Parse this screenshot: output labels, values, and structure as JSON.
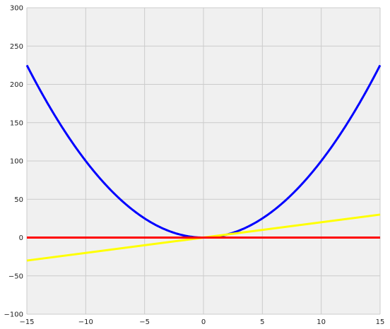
{
  "chart_data": {
    "type": "line",
    "title": "",
    "xlabel": "",
    "ylabel": "",
    "xlim": [
      -15,
      15
    ],
    "ylim": [
      -100,
      300
    ],
    "x_ticks": [
      -15,
      -10,
      -5,
      0,
      5,
      10,
      15
    ],
    "y_ticks": [
      -100,
      -50,
      0,
      50,
      100,
      150,
      200,
      250,
      300
    ],
    "x_tick_labels": [
      "−15",
      "−10",
      "−5",
      "0",
      "5",
      "10",
      "15"
    ],
    "y_tick_labels": [
      "−100",
      "−50",
      "0",
      "50",
      "100",
      "150",
      "200",
      "250",
      "300"
    ],
    "grid": true,
    "legend": "none",
    "series": [
      {
        "color": "#0000ff",
        "formula": "y = x^2",
        "x": [
          -15,
          -14,
          -13,
          -12,
          -11,
          -10,
          -9,
          -8,
          -7,
          -6,
          -5,
          -4,
          -3,
          -2,
          -1,
          0,
          1,
          2,
          3,
          4,
          5,
          6,
          7,
          8,
          9,
          10,
          11,
          12,
          13,
          14,
          15
        ],
        "values": [
          225,
          196,
          169,
          144,
          121,
          100,
          81,
          64,
          49,
          36,
          25,
          16,
          9,
          4,
          1,
          0,
          1,
          4,
          9,
          16,
          25,
          36,
          49,
          64,
          81,
          100,
          121,
          144,
          169,
          196,
          225
        ]
      },
      {
        "color": "#ffff00",
        "formula": "y = 2x",
        "x": [
          -15,
          15
        ],
        "values": [
          -30,
          30
        ]
      },
      {
        "color": "#ff0000",
        "formula": "y = 0",
        "x": [
          -15,
          15
        ],
        "values": [
          0,
          0
        ]
      }
    ]
  },
  "colors": {
    "plot_background": "#f0f0f0",
    "grid": "#cbcbcb"
  }
}
